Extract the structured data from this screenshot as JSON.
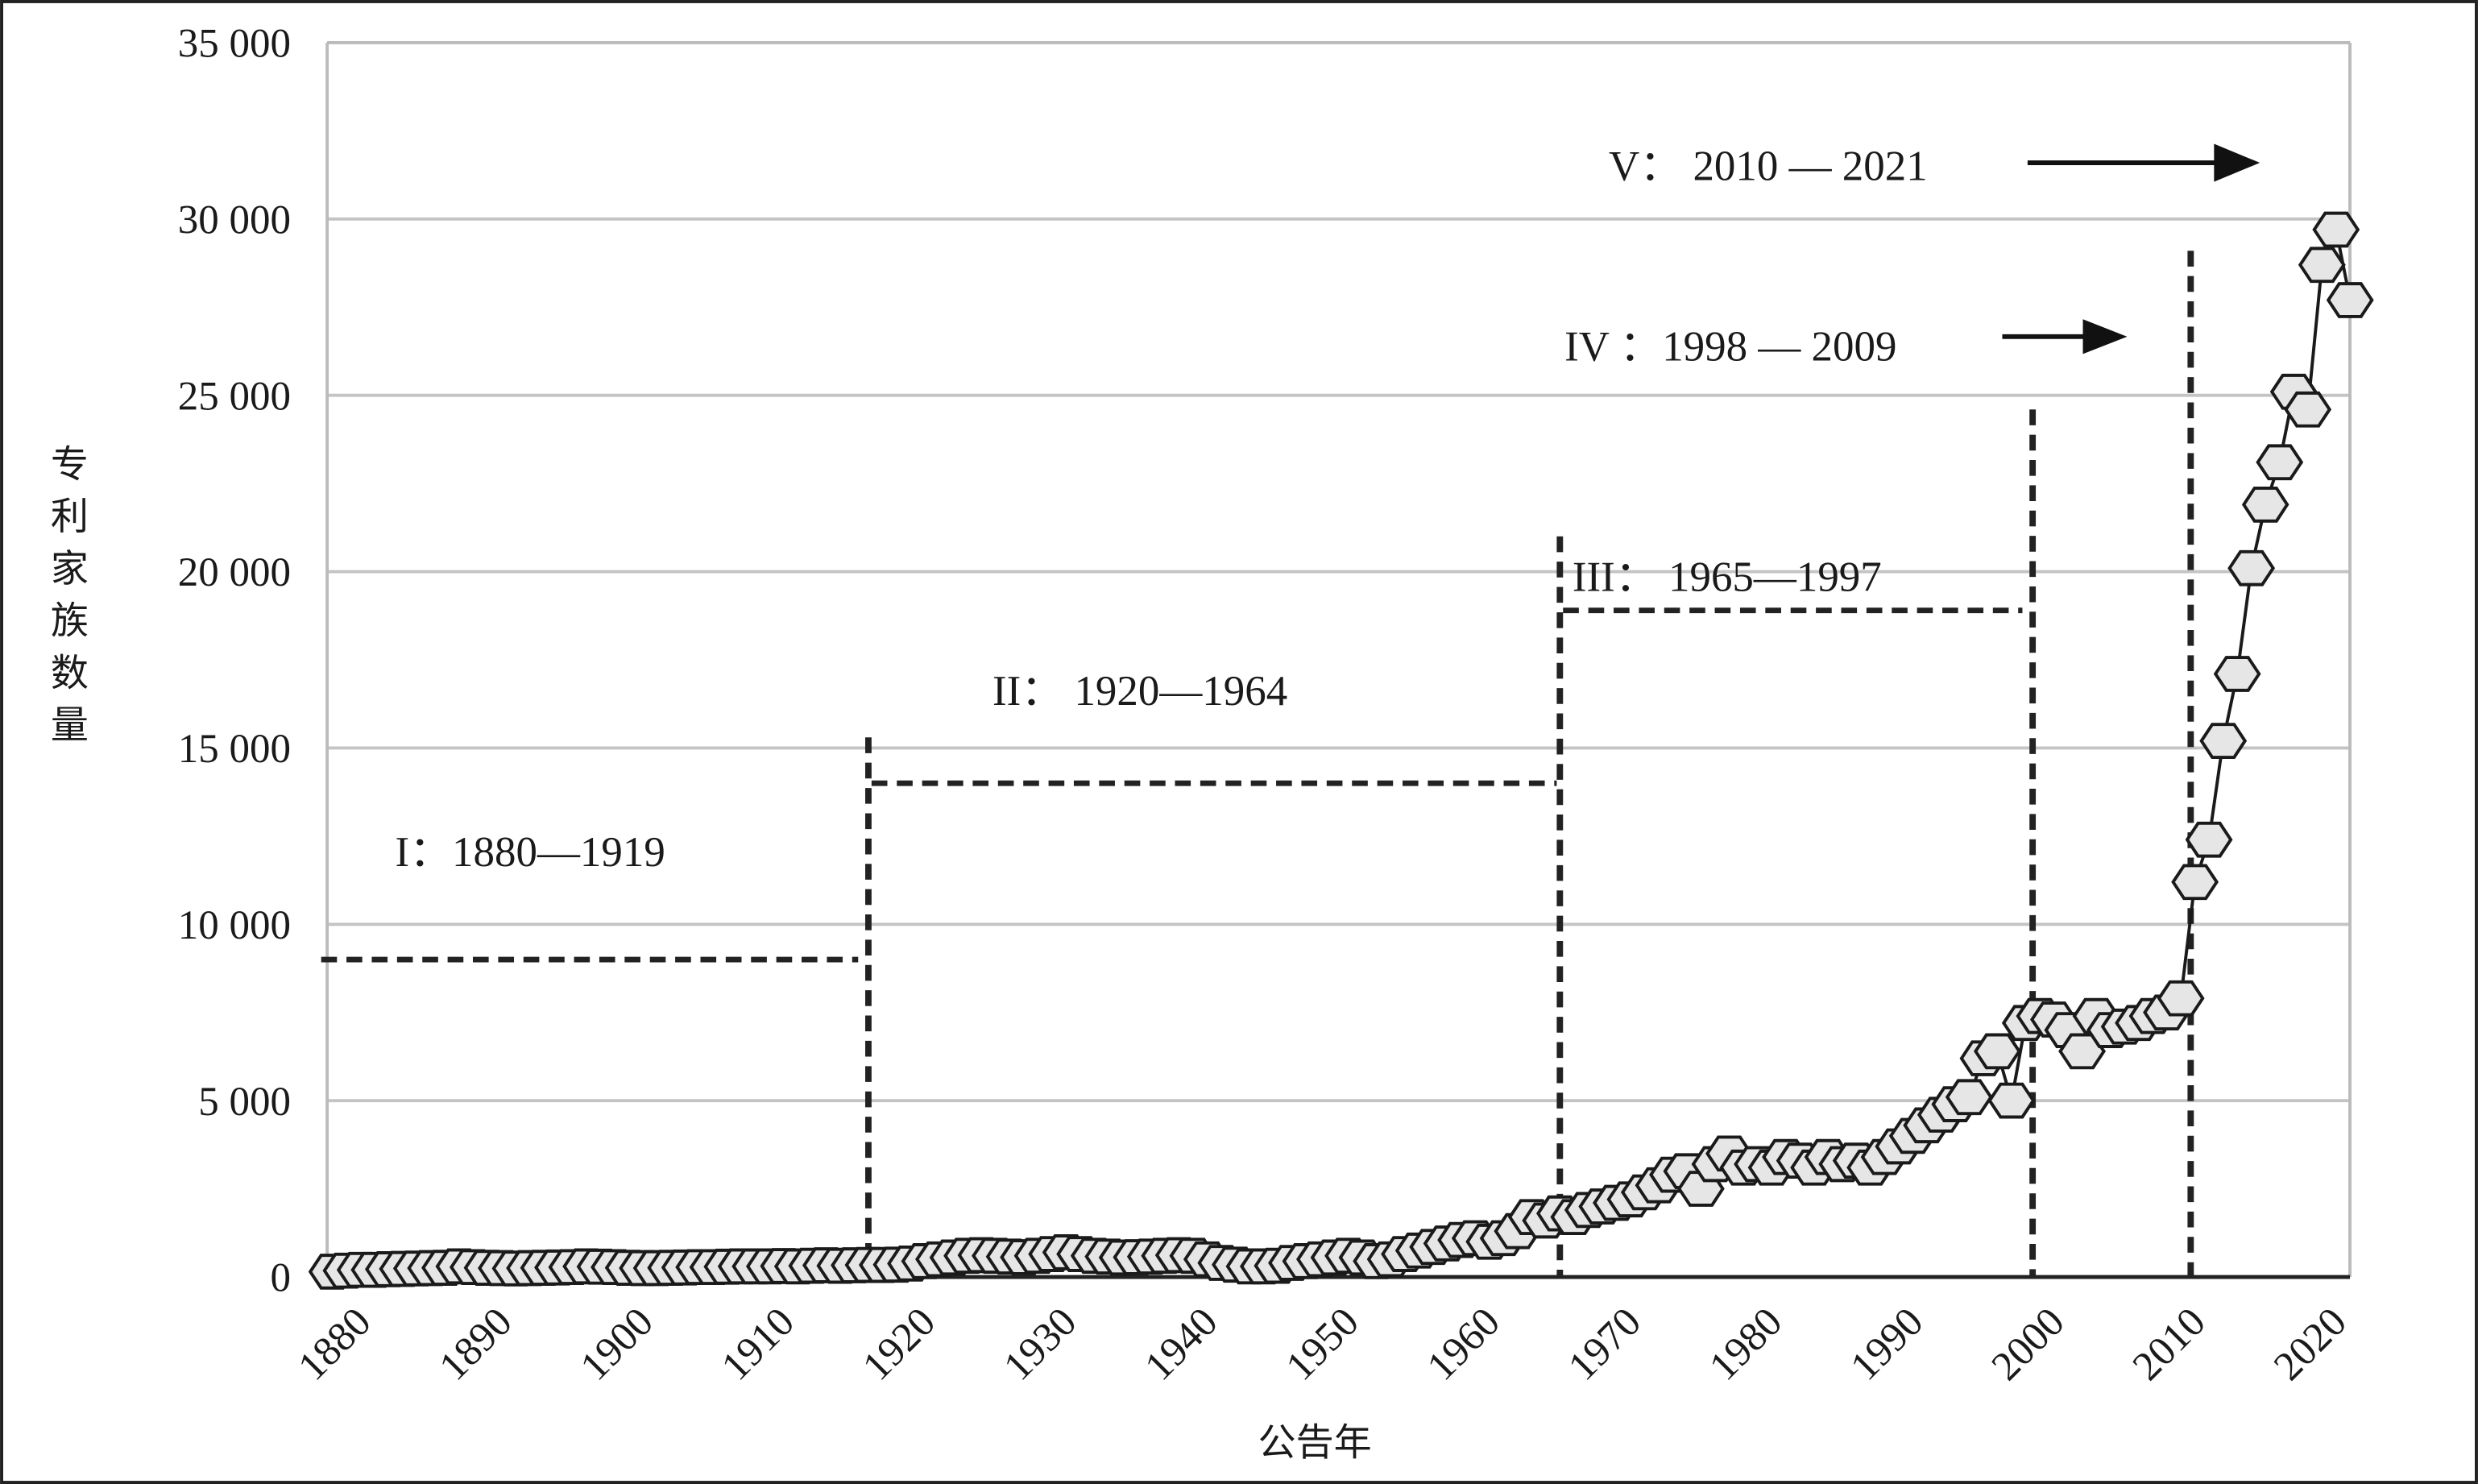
{
  "chart_data": {
    "type": "scatter",
    "title": "",
    "xlabel": "公告年",
    "ylabel": "专利家族数量",
    "xlim": [
      1877,
      2022
    ],
    "ylim": [
      0,
      35000
    ],
    "grid": true,
    "legend": "none",
    "y_ticks": [
      0,
      5000,
      10000,
      15000,
      20000,
      25000,
      30000,
      35000
    ],
    "y_tick_labels": [
      "0",
      "5 000",
      "10 000",
      "15 000",
      "20 000",
      "25 000",
      "30 000",
      "35 000"
    ],
    "x_ticks": [
      1880,
      1890,
      1900,
      1910,
      1920,
      1930,
      1940,
      1950,
      1960,
      1970,
      1980,
      1990,
      2000,
      2010,
      2020
    ],
    "x_tick_labels": [
      "1880",
      "1890",
      "1900",
      "1910",
      "1920",
      "1930",
      "1940",
      "1950",
      "1960",
      "1970",
      "1980",
      "1990",
      "2000",
      "2010",
      "2020"
    ],
    "series": [
      {
        "name": "专利家族数量",
        "start_year": 1878,
        "values": [
          150,
          180,
          200,
          200,
          220,
          230,
          240,
          250,
          260,
          300,
          280,
          260,
          250,
          240,
          250,
          260,
          270,
          280,
          300,
          290,
          280,
          260,
          250,
          250,
          260,
          270,
          280,
          280,
          290,
          300,
          300,
          300,
          310,
          300,
          320,
          330,
          320,
          330,
          340,
          340,
          350,
          380,
          450,
          500,
          550,
          600,
          620,
          600,
          580,
          560,
          600,
          650,
          700,
          650,
          600,
          580,
          550,
          560,
          580,
          600,
          620,
          600,
          500,
          400,
          350,
          300,
          300,
          320,
          400,
          450,
          500,
          550,
          600,
          550,
          450,
          500,
          650,
          750,
          850,
          950,
          1050,
          1100,
          1000,
          1100,
          1300,
          1700,
          1600,
          1800,
          1700,
          1900,
          2000,
          2100,
          2200,
          2400,
          2600,
          2900,
          3000,
          2500,
          3200,
          3500,
          3100,
          3200,
          3100,
          3400,
          3300,
          3100,
          3400,
          3200,
          3300,
          3100,
          3400,
          3700,
          4000,
          4300,
          4600,
          4900,
          5100,
          6200,
          6400,
          5000,
          7200,
          7400,
          7300,
          7000,
          6400,
          7400,
          7000,
          7100,
          7200,
          7400,
          7500,
          7900,
          11200,
          12400,
          15200,
          17100,
          20100,
          21900,
          23100,
          25100,
          24600,
          28700,
          29700,
          27700
        ]
      }
    ],
    "phases": [
      {
        "label": "I：1880—1919",
        "level": 9000,
        "from": 1877,
        "to": 1915.5
      },
      {
        "label": "II：  1920—1964",
        "level": 14000,
        "from": 1916,
        "to": 1965
      },
      {
        "label": "III：  1965—1997",
        "level": 18900,
        "from": 1965,
        "to": 1998
      },
      {
        "label": "IV ：1998  —  2009"
      },
      {
        "label": "V：  2010  —  2021"
      }
    ],
    "dividers": [
      {
        "year": 1916,
        "top": 15300
      },
      {
        "year": 1965,
        "top": 21000
      },
      {
        "year": 1998.5,
        "top": 24600
      },
      {
        "year": 2009.7,
        "top": 29100
      }
    ]
  }
}
